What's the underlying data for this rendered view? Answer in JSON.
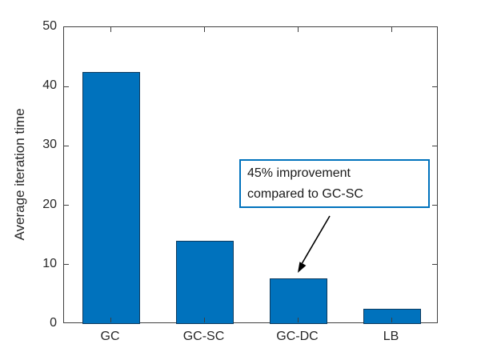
{
  "chart_data": {
    "type": "bar",
    "categories": [
      "GC",
      "GC-SC",
      "GC-DC",
      "LB"
    ],
    "values": [
      42.5,
      14,
      7.7,
      2.6
    ],
    "title": "",
    "xlabel": "",
    "ylabel": "Average iteration time",
    "ylim": [
      0,
      50
    ],
    "yticks": [
      0,
      10,
      20,
      30,
      40,
      50
    ],
    "grid": false,
    "legend": null,
    "bar_color": "#0072BD",
    "bar_edge_color": "#0d3a5e",
    "axis_color": "#3f3f3f"
  },
  "annotation": {
    "line1": "45% improvement",
    "line2": "compared to GC-SC",
    "border_color": "#0072BD",
    "arrow_color": "#000000",
    "points_to_category": "GC-DC"
  }
}
